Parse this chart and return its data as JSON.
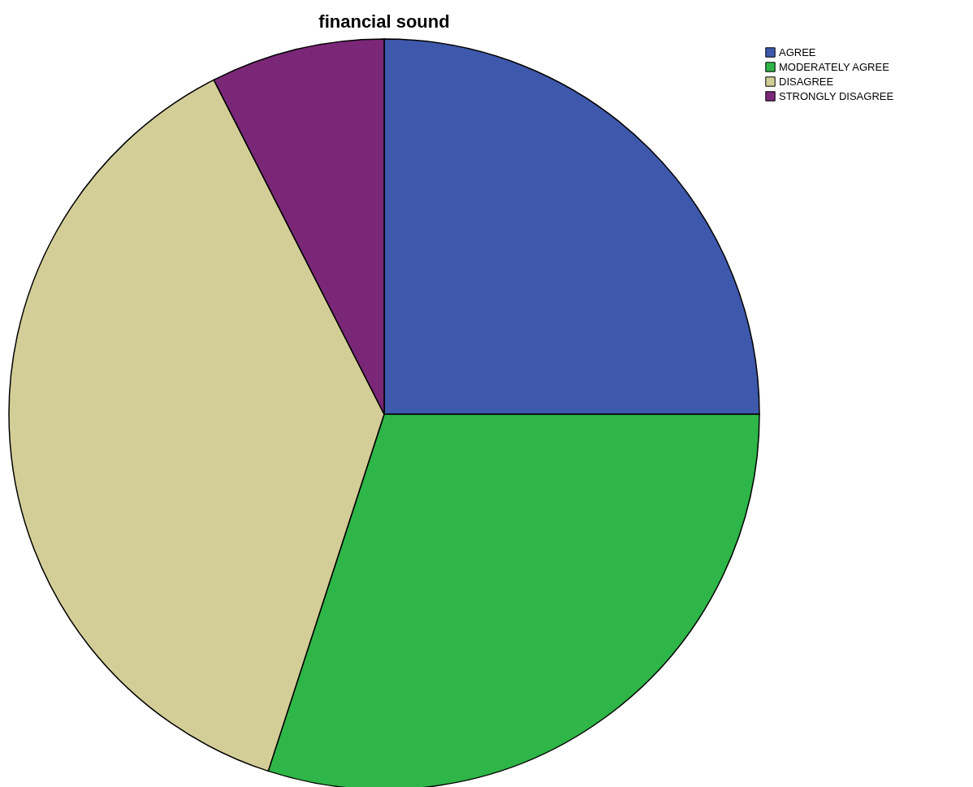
{
  "chart_data": {
    "type": "pie",
    "title": "financial sound",
    "categories": [
      "AGREE",
      "MODERATELY AGREE",
      "DISAGREE",
      "STRONGLY DISAGREE"
    ],
    "values": [
      25,
      30,
      37.5,
      7.5
    ],
    "colors": [
      "#3e58ac",
      "#2eb648",
      "#d3ce97",
      "#7b2778"
    ],
    "legend": "top right"
  }
}
